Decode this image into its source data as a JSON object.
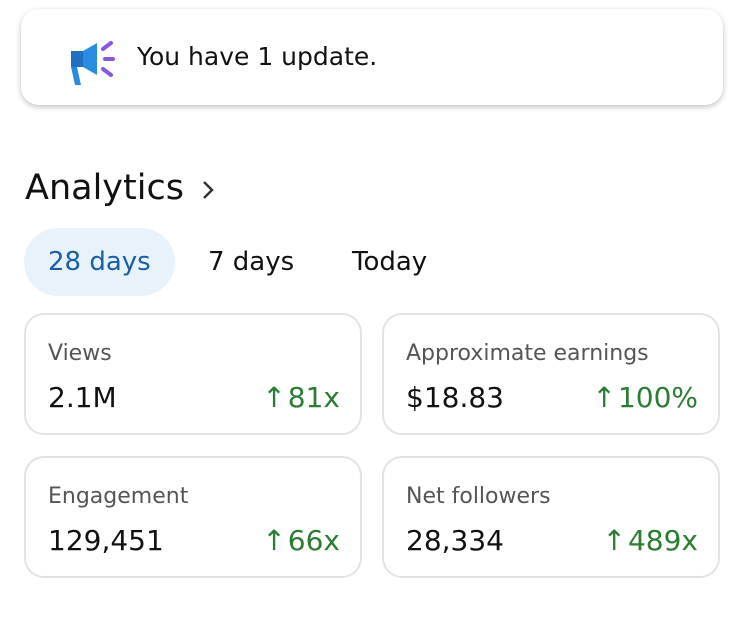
{
  "notification": {
    "text": "You have 1 update."
  },
  "analytics": {
    "title": "Analytics",
    "tabs": [
      "28 days",
      "7 days",
      "Today"
    ],
    "cards": [
      {
        "label": "Views",
        "value": "2.1M",
        "change": "81x"
      },
      {
        "label": "Approximate earnings",
        "value": "$18.83",
        "change": "100%"
      },
      {
        "label": "Engagement",
        "value": "129,451",
        "change": "66x"
      },
      {
        "label": "Net followers",
        "value": "28,334",
        "change": "489x"
      }
    ]
  }
}
